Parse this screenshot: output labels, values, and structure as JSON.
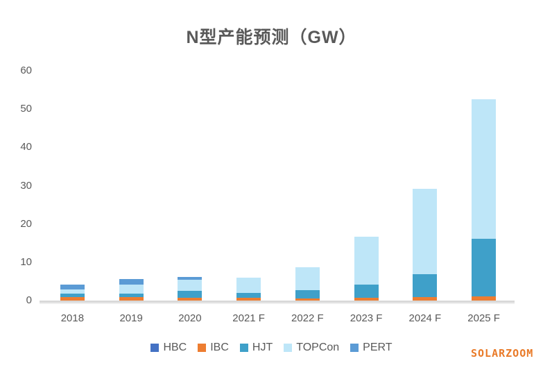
{
  "title": "N型产能预测（GW）",
  "watermark": "SOLARZOOM",
  "colors": {
    "background": "#ffffff",
    "title_text": "#595959",
    "axis_text": "#595959",
    "axis_line": "#d9d9d9",
    "watermark": "#e97a28"
  },
  "chart_data": {
    "type": "bar",
    "stacked": true,
    "title": "N型产能预测（GW）",
    "xlabel": "",
    "ylabel": "",
    "grid": false,
    "legend_position": "bottom",
    "ylim": [
      0,
      60
    ],
    "ytick_step": 10,
    "yticks": [
      0,
      10,
      20,
      30,
      40,
      50,
      60
    ],
    "categories": [
      "2018",
      "2019",
      "2020",
      "2021 F",
      "2022 F",
      "2023 F",
      "2024 F",
      "2025 F"
    ],
    "series": [
      {
        "name": "HBC",
        "color": "#4472c4",
        "values": [
          0,
          0,
          0,
          0,
          0,
          0,
          0,
          0
        ]
      },
      {
        "name": "IBC",
        "color": "#ed7d31",
        "values": [
          0.9,
          0.9,
          0.7,
          0.7,
          0.6,
          0.8,
          0.9,
          1.0
        ]
      },
      {
        "name": "HJT",
        "color": "#3fa0c9",
        "values": [
          0.9,
          1.0,
          1.8,
          1.3,
          2.2,
          3.4,
          5.9,
          15.1
        ]
      },
      {
        "name": "TOPCon",
        "color": "#bee6f8",
        "values": [
          1.1,
          2.3,
          3.0,
          3.9,
          5.9,
          12.4,
          22.3,
          36.4
        ]
      },
      {
        "name": "PERT",
        "color": "#5b9bd5",
        "values": [
          1.2,
          1.5,
          0.6,
          0,
          0,
          0,
          0,
          0
        ]
      }
    ],
    "totals": [
      4.1,
      5.7,
      6.1,
      5.9,
      8.7,
      16.6,
      29.1,
      52.5
    ]
  }
}
